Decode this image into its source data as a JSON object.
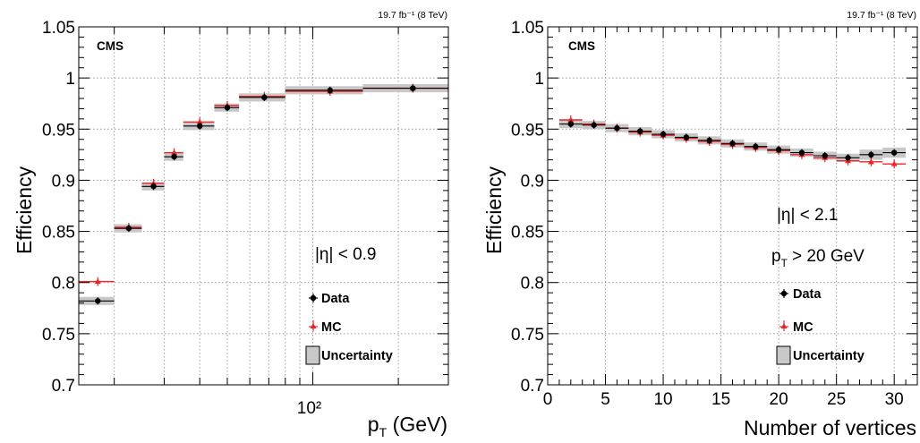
{
  "panels": {
    "left": {
      "lumi_label": "19.7 fb⁻¹ (8 TeV)",
      "experiment": "CMS",
      "selection": "|η| < 0.9",
      "legend": {
        "data": "Data",
        "mc": "MC",
        "unc": "Uncertainty"
      }
    },
    "right": {
      "lumi_label": "19.7 fb⁻¹ (8 TeV)",
      "experiment": "CMS",
      "selection": "|η| < 2.1",
      "selection2": "p_T > 20 GeV",
      "legend": {
        "data": "Data",
        "mc": "MC",
        "unc": "Uncertainty"
      }
    }
  },
  "chart_data": [
    {
      "type": "scatter",
      "xlabel": "p_T (GeV)",
      "ylabel": "Efficiency",
      "xscale": "log",
      "xlim": [
        15,
        300
      ],
      "ylim": [
        0.7,
        1.05
      ],
      "yticks": [
        0.7,
        0.75,
        0.8,
        0.85,
        0.9,
        0.95,
        1,
        1.05
      ],
      "xtick_labels": [
        "10²"
      ],
      "grid": true,
      "legend_position": "bottom-right",
      "bins": [
        [
          15,
          20
        ],
        [
          20,
          25
        ],
        [
          25,
          30
        ],
        [
          30,
          35
        ],
        [
          35,
          45
        ],
        [
          45,
          55
        ],
        [
          55,
          80
        ],
        [
          80,
          150
        ],
        [
          150,
          300
        ]
      ],
      "x": [
        17.5,
        22.5,
        27.5,
        32.5,
        40,
        50,
        67.5,
        115,
        225
      ],
      "series": [
        {
          "name": "Data",
          "color": "#000000",
          "values": [
            0.782,
            0.853,
            0.894,
            0.923,
            0.953,
            0.971,
            0.981,
            0.988,
            0.99
          ]
        },
        {
          "name": "MC",
          "color": "#e8262a",
          "values": [
            0.801,
            0.854,
            0.897,
            0.927,
            0.957,
            0.973,
            0.982,
            0.987,
            0.99
          ]
        }
      ],
      "uncertainty": [
        0.004,
        0.004,
        0.004,
        0.004,
        0.004,
        0.004,
        0.004,
        0.004,
        0.004
      ],
      "band_color": "#c8c8c8"
    },
    {
      "type": "scatter",
      "xlabel": "Number of vertices",
      "ylabel": "Efficiency",
      "xlim": [
        0,
        32
      ],
      "ylim": [
        0.7,
        1.05
      ],
      "yticks": [
        0.7,
        0.75,
        0.8,
        0.85,
        0.9,
        0.95,
        1,
        1.05
      ],
      "xticks": [
        0,
        5,
        10,
        15,
        20,
        25,
        30
      ],
      "grid": true,
      "legend_position": "bottom-right",
      "x": [
        2,
        4,
        6,
        8,
        10,
        12,
        14,
        16,
        18,
        20,
        22,
        24,
        26,
        28,
        30
      ],
      "series": [
        {
          "name": "Data",
          "color": "#000000",
          "values": [
            0.955,
            0.954,
            0.951,
            0.948,
            0.945,
            0.942,
            0.939,
            0.936,
            0.933,
            0.93,
            0.927,
            0.924,
            0.922,
            0.925,
            0.927
          ]
        },
        {
          "name": "MC",
          "color": "#e8262a",
          "values": [
            0.959,
            0.955,
            0.951,
            0.947,
            0.944,
            0.941,
            0.938,
            0.935,
            0.932,
            0.929,
            0.925,
            0.922,
            0.919,
            0.918,
            0.916
          ]
        }
      ],
      "uncertainty": [
        0.004,
        0.004,
        0.004,
        0.004,
        0.004,
        0.004,
        0.004,
        0.004,
        0.004,
        0.004,
        0.004,
        0.004,
        0.004,
        0.005,
        0.005
      ],
      "band_color": "#c8c8c8"
    }
  ]
}
